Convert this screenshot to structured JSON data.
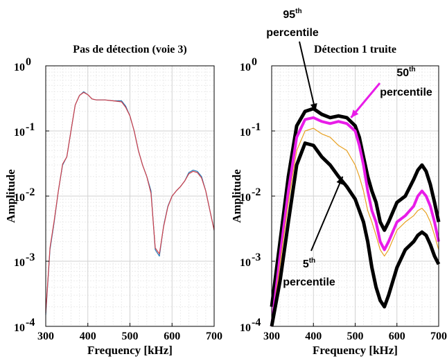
{
  "chart_data": [
    {
      "type": "line",
      "title": "Pas de détection (voie 3)",
      "xlabel": "Frequency [kHz]",
      "ylabel": "Amplitude",
      "xlim": [
        300,
        700
      ],
      "ylim": [
        0.0001,
        1
      ],
      "yscale": "log",
      "grid": true,
      "xticks": [
        "300",
        "400",
        "500",
        "600",
        "700"
      ],
      "yticks": [
        {
          "base": "10",
          "exp": "-4"
        },
        {
          "base": "10",
          "exp": "-3"
        },
        {
          "base": "10",
          "exp": "-2"
        },
        {
          "base": "10",
          "exp": "-1"
        },
        {
          "base": "10",
          "exp": "0"
        }
      ],
      "series": [
        {
          "color": "#1f77b4",
          "x": [
            300,
            310,
            320,
            330,
            340,
            350,
            360,
            370,
            380,
            390,
            400,
            410,
            420,
            440,
            460,
            480,
            490,
            500,
            510,
            520,
            530,
            540,
            550,
            560,
            570,
            580,
            590,
            600,
            610,
            620,
            630,
            640,
            650,
            660,
            670,
            680,
            690,
            700
          ],
          "y": [
            0.00015,
            0.0015,
            0.004,
            0.012,
            0.03,
            0.04,
            0.1,
            0.25,
            0.35,
            0.4,
            0.36,
            0.31,
            0.3,
            0.3,
            0.29,
            0.29,
            0.24,
            0.17,
            0.1,
            0.05,
            0.03,
            0.02,
            0.012,
            0.0015,
            0.0012,
            0.0035,
            0.007,
            0.01,
            0.012,
            0.014,
            0.017,
            0.023,
            0.025,
            0.024,
            0.02,
            0.012,
            0.006,
            0.003
          ]
        },
        {
          "color": "#d0404a",
          "x": [
            300,
            310,
            320,
            330,
            340,
            350,
            360,
            370,
            380,
            390,
            400,
            410,
            420,
            440,
            460,
            480,
            490,
            500,
            510,
            520,
            530,
            540,
            550,
            560,
            570,
            580,
            590,
            600,
            610,
            620,
            630,
            640,
            650,
            660,
            670,
            680,
            690,
            700
          ],
          "y": [
            0.00016,
            0.0016,
            0.0042,
            0.012,
            0.031,
            0.04,
            0.1,
            0.25,
            0.35,
            0.39,
            0.36,
            0.31,
            0.3,
            0.3,
            0.29,
            0.28,
            0.23,
            0.17,
            0.1,
            0.05,
            0.03,
            0.02,
            0.011,
            0.0016,
            0.0013,
            0.0034,
            0.0068,
            0.01,
            0.012,
            0.014,
            0.017,
            0.022,
            0.024,
            0.023,
            0.019,
            0.012,
            0.006,
            0.003
          ]
        }
      ]
    },
    {
      "type": "line",
      "title": "Détection 1 truite",
      "xlabel": "Frequency [kHz]",
      "ylabel": "Amplitude",
      "xlim": [
        300,
        700
      ],
      "ylim": [
        0.0001,
        1
      ],
      "yscale": "log",
      "grid": true,
      "xticks": [
        "300",
        "400",
        "500",
        "600",
        "700"
      ],
      "yticks": [
        {
          "base": "10",
          "exp": "-4"
        },
        {
          "base": "10",
          "exp": "-3"
        },
        {
          "base": "10",
          "exp": "-2"
        },
        {
          "base": "10",
          "exp": "-1"
        },
        {
          "base": "10",
          "exp": "0"
        }
      ],
      "series": [
        {
          "color": "#000000",
          "x": [
            300,
            320,
            340,
            360,
            380,
            400,
            420,
            440,
            460,
            480,
            500,
            510,
            520,
            530,
            540,
            550,
            560,
            570,
            580,
            600,
            620,
            640,
            650,
            660,
            670,
            680,
            690,
            700
          ],
          "y": [
            0.0002,
            0.002,
            0.02,
            0.12,
            0.2,
            0.22,
            0.18,
            0.16,
            0.17,
            0.16,
            0.12,
            0.08,
            0.04,
            0.02,
            0.012,
            0.008,
            0.004,
            0.003,
            0.004,
            0.008,
            0.01,
            0.018,
            0.025,
            0.03,
            0.024,
            0.015,
            0.008,
            0.004
          ]
        },
        {
          "color": "#e81ce8",
          "x": [
            300,
            320,
            340,
            360,
            380,
            400,
            420,
            440,
            460,
            480,
            500,
            510,
            520,
            530,
            540,
            550,
            560,
            570,
            580,
            600,
            620,
            640,
            650,
            660,
            670,
            680,
            690,
            700
          ],
          "y": [
            0.0001,
            0.0012,
            0.012,
            0.08,
            0.15,
            0.16,
            0.14,
            0.13,
            0.14,
            0.13,
            0.1,
            0.06,
            0.03,
            0.012,
            0.006,
            0.004,
            0.002,
            0.0015,
            0.002,
            0.004,
            0.005,
            0.007,
            0.01,
            0.012,
            0.01,
            0.007,
            0.004,
            0.002
          ]
        },
        {
          "color": "#e8a020",
          "x": [
            300,
            320,
            340,
            360,
            380,
            400,
            420,
            440,
            460,
            480,
            500,
            510,
            520,
            530,
            540,
            550,
            560,
            570,
            580,
            600,
            620,
            640,
            650,
            660,
            670,
            680,
            690,
            700
          ],
          "y": [
            0.0001,
            0.0009,
            0.008,
            0.05,
            0.1,
            0.11,
            0.09,
            0.08,
            0.06,
            0.05,
            0.03,
            0.02,
            0.012,
            0.006,
            0.004,
            0.0025,
            0.0015,
            0.0012,
            0.0015,
            0.003,
            0.004,
            0.005,
            0.006,
            0.0065,
            0.0055,
            0.004,
            0.0025,
            0.0015
          ]
        },
        {
          "color": "#000000",
          "x": [
            300,
            320,
            340,
            360,
            380,
            400,
            420,
            440,
            460,
            480,
            500,
            510,
            520,
            530,
            540,
            550,
            560,
            570,
            580,
            600,
            620,
            640,
            650,
            660,
            670,
            680,
            690,
            700
          ],
          "y": [
            0.0001,
            0.0005,
            0.004,
            0.03,
            0.065,
            0.06,
            0.04,
            0.03,
            0.02,
            0.014,
            0.009,
            0.006,
            0.004,
            0.002,
            0.0008,
            0.0004,
            0.00025,
            0.0002,
            0.0003,
            0.0008,
            0.0015,
            0.002,
            0.0025,
            0.0028,
            0.0025,
            0.0018,
            0.0012,
            0.0009
          ]
        }
      ],
      "annotations": [
        {
          "base": "95",
          "sup": "th",
          "line2": "percentile",
          "at_x": 405,
          "at_y": 0.2
        },
        {
          "base": "50",
          "sup": "th",
          "line2": "percentile",
          "at_x": 490,
          "at_y": 0.16
        },
        {
          "base": "5",
          "sup": "th",
          "line2": "percentile",
          "at_x": 470,
          "at_y": 0.02
        }
      ]
    }
  ]
}
